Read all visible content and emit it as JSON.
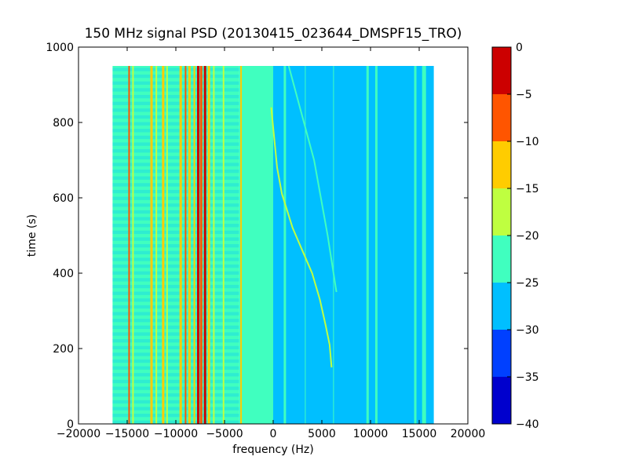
{
  "chart_data": {
    "type": "heatmap",
    "title": "150 MHz signal PSD (20130415_023644_DMSPF15_TRO)",
    "xlabel": "frequency (Hz)",
    "ylabel": "time (s)",
    "xlim": [
      -20000,
      20000
    ],
    "ylim": [
      0,
      1000
    ],
    "x_ticks": [
      -20000,
      -15000,
      -10000,
      -5000,
      0,
      5000,
      10000,
      15000,
      20000
    ],
    "x_tick_labels": [
      "−20000",
      "−15000",
      "−10000",
      "−5000",
      "0",
      "5000",
      "10000",
      "15000",
      "20000"
    ],
    "y_ticks": [
      0,
      200,
      400,
      600,
      800,
      1000
    ],
    "y_tick_labels": [
      "0",
      "200",
      "400",
      "600",
      "800",
      "1000"
    ],
    "data_extent": {
      "x": [
        -16500,
        16500
      ],
      "y": [
        0,
        950
      ]
    },
    "grid": false,
    "colorbar": {
      "range": [
        -40,
        0
      ],
      "levels": [
        -40,
        -35,
        -30,
        -25,
        -20,
        -15,
        -10,
        -5,
        0
      ],
      "tick_labels": [
        "−40",
        "−35",
        "−30",
        "−25",
        "−20",
        "−15",
        "−10",
        "−5",
        "0"
      ],
      "colors": [
        "#0000cd",
        "#0040ff",
        "#00bfff",
        "#40ffbf",
        "#bfff40",
        "#ffcc00",
        "#ff5500",
        "#cc0000"
      ]
    },
    "background_regions": [
      {
        "x": [
          -16500,
          -3500
        ],
        "level": -22.5
      },
      {
        "x": [
          -3500,
          0
        ],
        "level": -24
      },
      {
        "x": [
          0,
          16500
        ],
        "level": -27.5
      }
    ],
    "vertical_lines": [
      {
        "x": -14800,
        "y": [
          0,
          950
        ],
        "level": -7.5,
        "width": 2
      },
      {
        "x": -14400,
        "y": [
          0,
          950
        ],
        "level": -17.5,
        "width": 2
      },
      {
        "x": -12500,
        "y": [
          0,
          950
        ],
        "level": -12.5,
        "width": 3
      },
      {
        "x": -12000,
        "y": [
          0,
          950
        ],
        "level": -17.5,
        "width": 2
      },
      {
        "x": -11300,
        "y": [
          0,
          950
        ],
        "level": -12.5,
        "width": 3
      },
      {
        "x": -10900,
        "y": [
          0,
          950
        ],
        "level": -17.5,
        "width": 2
      },
      {
        "x": -9500,
        "y": [
          0,
          950
        ],
        "level": -12.5,
        "width": 3
      },
      {
        "x": -9000,
        "y": [
          0,
          950
        ],
        "level": -7.5,
        "width": 2
      },
      {
        "x": -8600,
        "y": [
          0,
          950
        ],
        "level": -12.5,
        "width": 3
      },
      {
        "x": -8100,
        "y": [
          0,
          950
        ],
        "level": -12.5,
        "width": 2
      },
      {
        "x": -7700,
        "y": [
          0,
          950
        ],
        "level": -2.5,
        "width": 3
      },
      {
        "x": -7400,
        "y": [
          0,
          950
        ],
        "level": -7.5,
        "width": 3
      },
      {
        "x": -7000,
        "y": [
          0,
          950
        ],
        "level": -2.5,
        "width": 3
      },
      {
        "x": -6600,
        "y": [
          0,
          950
        ],
        "level": -12.5,
        "width": 3
      },
      {
        "x": -6100,
        "y": [
          0,
          950
        ],
        "level": -17.5,
        "width": 2
      },
      {
        "x": -5100,
        "y": [
          0,
          950
        ],
        "level": -17.5,
        "width": 2
      },
      {
        "x": -3300,
        "y": [
          0,
          950
        ],
        "level": -12.5,
        "width": 2
      },
      {
        "x": 1200,
        "y": [
          0,
          950
        ],
        "level": -22.5,
        "width": 3
      },
      {
        "x": 3300,
        "y": [
          0,
          950
        ],
        "level": -22.5,
        "width": 1
      },
      {
        "x": 6200,
        "y": [
          0,
          950
        ],
        "level": -22.5,
        "width": 1
      },
      {
        "x": 9700,
        "y": [
          0,
          950
        ],
        "level": -22.5,
        "width": 3
      },
      {
        "x": 10600,
        "y": [
          0,
          950
        ],
        "level": -22.5,
        "width": 3
      },
      {
        "x": 14600,
        "y": [
          0,
          950
        ],
        "level": -22.5,
        "width": 3
      },
      {
        "x": 15500,
        "y": [
          0,
          950
        ],
        "level": -22.5,
        "width": 5
      }
    ],
    "traces": [
      {
        "level": -17.5,
        "width": 2,
        "points": [
          [
            -200,
            840
          ],
          [
            400,
            680
          ],
          [
            900,
            610
          ],
          [
            2000,
            520
          ],
          [
            3000,
            460
          ],
          [
            4000,
            400
          ],
          [
            4800,
            330
          ],
          [
            5400,
            260
          ],
          [
            5800,
            210
          ],
          [
            6000,
            150
          ]
        ]
      },
      {
        "level": -22.5,
        "width": 2,
        "points": [
          [
            1600,
            950
          ],
          [
            4200,
            700
          ],
          [
            5600,
            500
          ],
          [
            6500,
            350
          ]
        ]
      }
    ]
  }
}
